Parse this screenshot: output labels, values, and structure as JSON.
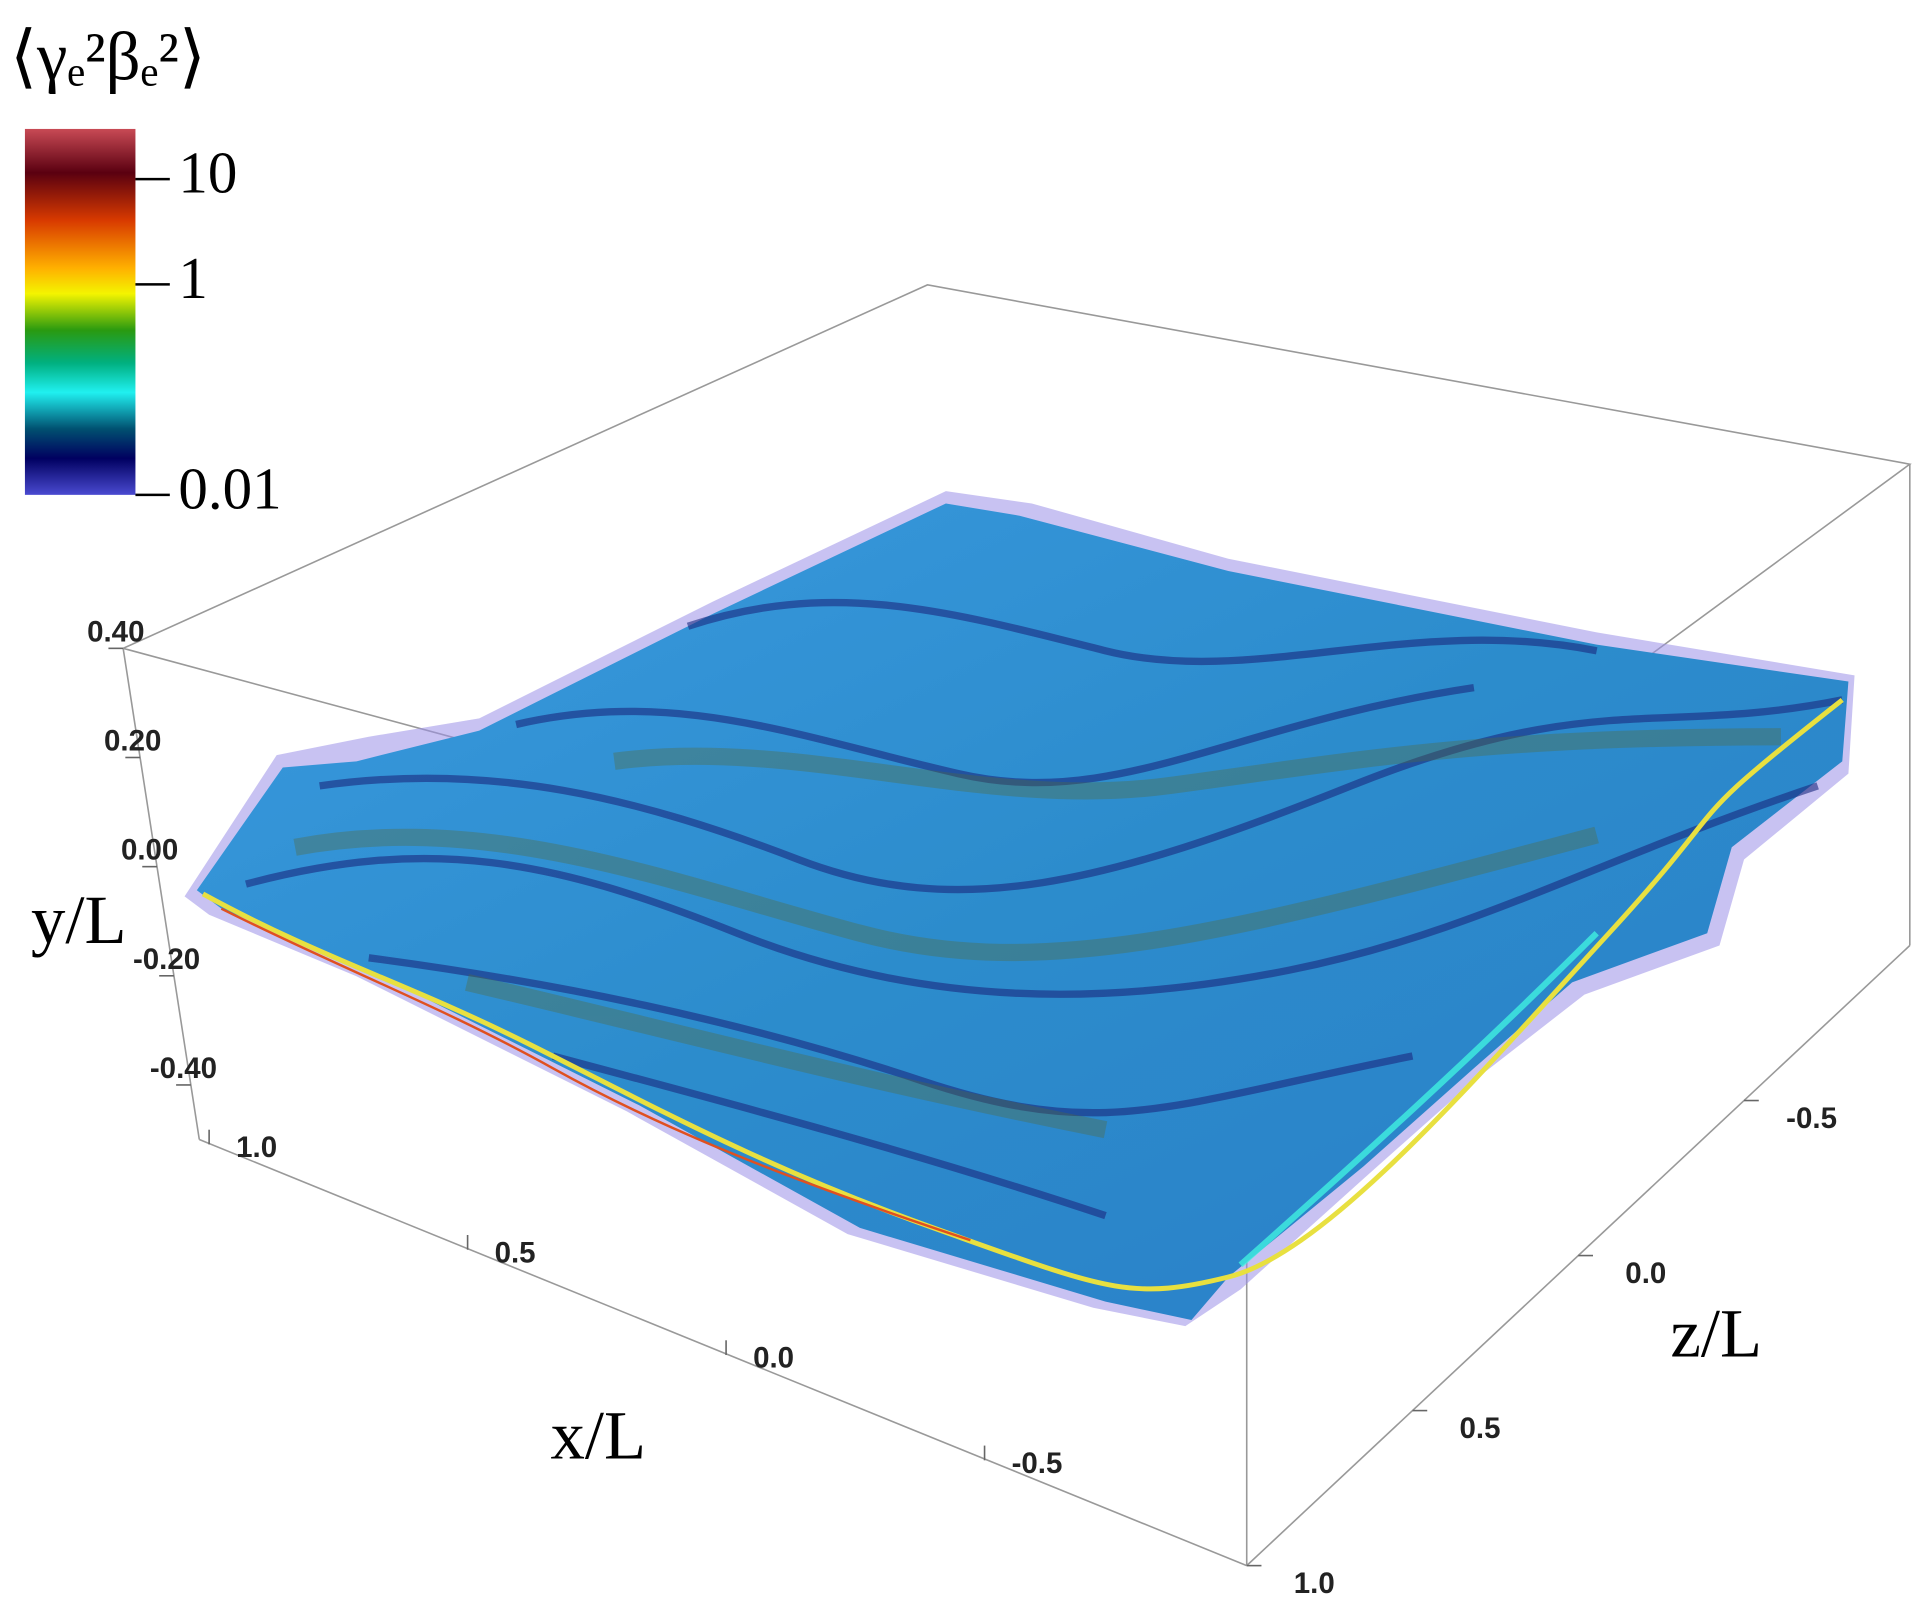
{
  "chart_data": {
    "type": "surface3d",
    "colorbar": {
      "title": "⟨γₑ²βₑ²⟩",
      "log": true,
      "clim": [
        0.01,
        30
      ],
      "ticks": [
        10,
        1,
        0.01
      ]
    },
    "xlabel": "x/L",
    "ylabel": "y/L",
    "zlabel": "z/L",
    "xlim": [
      1,
      -1
    ],
    "ylim": [
      -0.5,
      0.4
    ],
    "zlim": [
      1,
      -1
    ],
    "xticks": [
      {
        "value": 1,
        "label": "1.0"
      },
      0.5,
      {
        "value": 0,
        "label": "0.0"
      },
      -0.5
    ],
    "yticks": [
      {
        "value": 0.4,
        "label": "0.40"
      },
      {
        "value": 0.2,
        "label": "0.20"
      },
      {
        "value": 0,
        "label": "0.00"
      },
      {
        "value": -0.2,
        "label": "-0.20"
      },
      {
        "value": -0.4,
        "label": "-0.40"
      }
    ],
    "zticks": [
      {
        "value": 1,
        "label": "1.0"
      },
      0.5,
      {
        "value": 0,
        "label": "0.0"
      },
      -0.5
    ]
  }
}
